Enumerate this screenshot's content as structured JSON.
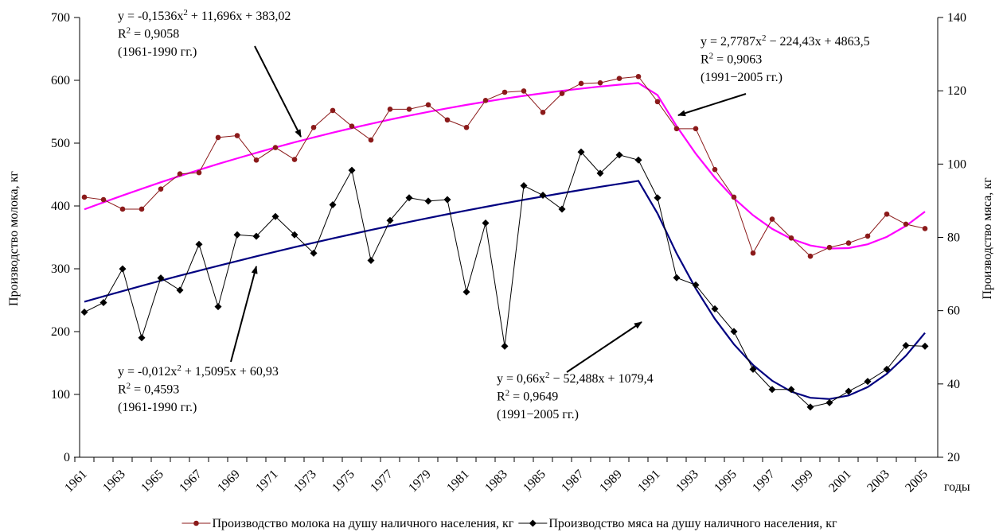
{
  "chart_data": {
    "type": "line",
    "categories": [
      "1961",
      null,
      "1963",
      null,
      "1965",
      null,
      "1967",
      null,
      "1969",
      null,
      "1971",
      null,
      "1973",
      null,
      "1975",
      null,
      "1977",
      null,
      "1979",
      null,
      "1981",
      null,
      "1983",
      null,
      "1985",
      null,
      "1987",
      null,
      "1989",
      null,
      "1991",
      null,
      "1993",
      null,
      "1995",
      null,
      "1997",
      null,
      "1999",
      null,
      "2001",
      null,
      "2003",
      null,
      "2005"
    ],
    "x_label": "годы",
    "y_label": "Производство молока, кг",
    "y2_label": "Производство мяса, кг",
    "ylim": [
      0,
      700
    ],
    "yticks": [
      0,
      100,
      200,
      300,
      400,
      500,
      600,
      700
    ],
    "y2lim": [
      20,
      140
    ],
    "y2ticks": [
      20,
      40,
      60,
      80,
      100,
      120,
      140
    ],
    "legend": "bottom",
    "series": [
      {
        "name": "Производство молока на душу наличного населения, кг",
        "color": "#8b1a1a",
        "marker": "circle",
        "values": [
          414,
          410,
          395,
          395,
          427,
          451,
          453,
          509,
          512,
          473,
          493,
          474,
          525,
          552,
          527,
          505,
          554,
          554,
          561,
          537,
          525,
          568,
          581,
          583,
          549,
          579,
          595,
          596,
          603,
          606,
          566,
          523,
          523,
          458,
          414,
          325,
          379,
          349,
          320,
          334,
          341,
          352,
          387,
          371,
          364
        ]
      },
      {
        "name": "Производство мяса на душу наличного населения, кг",
        "color": "#000000",
        "marker": "diamond",
        "axis": "y2",
        "values": [
          59.6,
          62.2,
          71.4,
          52.6,
          68.9,
          65.6,
          78.1,
          61.1,
          80.7,
          80.3,
          85.7,
          80.7,
          75.7,
          88.9,
          98.3,
          73.7,
          84.6,
          90.8,
          89.9,
          90.3,
          65.1,
          83.9,
          50.3,
          94.1,
          91.5,
          87.7,
          103.3,
          97.5,
          102.5,
          101.1,
          90.8,
          69.0,
          67.0,
          60.5,
          54.3,
          44.0,
          38.5,
          38.5,
          33.7,
          34.9,
          38.0,
          40.7,
          44.0,
          50.5,
          50.3
        ]
      },
      {
        "color": "#ff00ff",
        "values": [
          394.6,
          405.8,
          416.7,
          427.3,
          437.7,
          447.7,
          457.4,
          466.8,
          475.8,
          484.6,
          493.1,
          501.3,
          509.1,
          516.7,
          523.9,
          530.8,
          537.5,
          543.8,
          549.8,
          555.5,
          560.9,
          566.0,
          570.8,
          575.3,
          579.4,
          583.3,
          586.8,
          590.1,
          593.0,
          595.7,
          576.5,
          527.1,
          483.3,
          445.1,
          412.3,
          385.2,
          363.6,
          347.6,
          337.1,
          332.2,
          332.9,
          339.0,
          350.8,
          368.2,
          391.0
        ]
      },
      {
        "color": "#000080",
        "axis": "y2",
        "values": [
          62.43,
          63.9,
          65.35,
          66.78,
          68.18,
          69.56,
          70.91,
          72.24,
          73.54,
          74.83,
          76.08,
          77.32,
          78.53,
          79.71,
          80.87,
          82.01,
          83.12,
          84.21,
          85.28,
          86.32,
          87.34,
          88.33,
          89.3,
          90.25,
          91.17,
          92.07,
          92.94,
          93.79,
          94.61,
          95.42,
          86.53,
          75.62,
          66.04,
          57.77,
          50.82,
          45.19,
          40.88,
          37.9,
          36.23,
          35.88,
          36.85,
          39.14,
          42.76,
          47.69,
          53.94
        ]
      }
    ],
    "annotations": [
      {
        "lines": [
          [
            "y = -0,1536x",
            "2",
            " + 11,696x + 383,02"
          ],
          [
            "R",
            "2",
            " = 0,9058"
          ],
          [
            "(1961-1990 гг.)"
          ]
        ]
      },
      {
        "lines": [
          [
            "y = 2,7787x",
            "2",
            " − 224,43x + 4863,5"
          ],
          [
            "R",
            "2",
            " = 0,9063"
          ],
          [
            "(1991−2005 гг.)"
          ]
        ]
      },
      {
        "lines": [
          [
            "y = -0,012x",
            "2",
            " + 1,5095x + 60,93"
          ],
          [
            "R",
            "2",
            " = 0,4593"
          ],
          [
            "(1961-1990 гг.)"
          ]
        ]
      },
      {
        "lines": [
          [
            "y = 0,66x",
            "2",
            " − 52,488x + 1079,4"
          ],
          [
            "R",
            "2",
            " = 0,9649"
          ],
          [
            "(1991−2005 гг.)"
          ]
        ]
      }
    ]
  }
}
